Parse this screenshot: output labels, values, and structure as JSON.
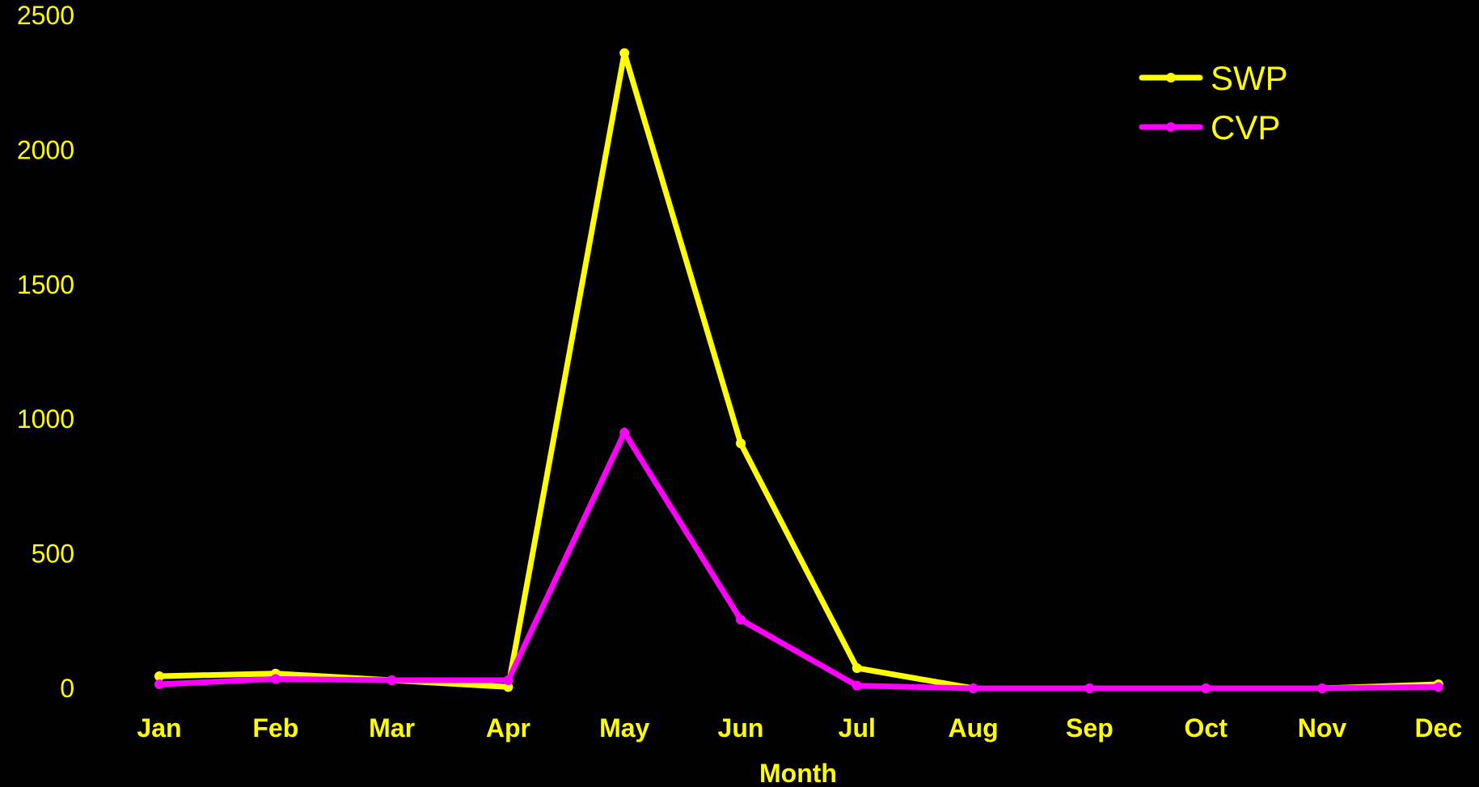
{
  "chart_data": {
    "type": "line",
    "categories": [
      "Jan",
      "Feb",
      "Mar",
      "Apr",
      "May",
      "Jun",
      "Jul",
      "Aug",
      "Sep",
      "Oct",
      "Nov",
      "Dec"
    ],
    "yticks": [
      "0",
      "500",
      "1000",
      "1500",
      "2000",
      "2500"
    ],
    "ylim": [
      0,
      2500
    ],
    "xlabel": "Month",
    "ylabel": "",
    "grid": false,
    "legend_position": "top-right",
    "text_color": "#FFFF00",
    "background": "#000000",
    "series": [
      {
        "name": "SWP",
        "color": "#FFFF00",
        "values": [
          45,
          55,
          30,
          5,
          2360,
          910,
          75,
          0,
          0,
          0,
          0,
          15
        ]
      },
      {
        "name": "CVP",
        "color": "#FF00FF",
        "values": [
          15,
          35,
          30,
          30,
          950,
          255,
          10,
          0,
          0,
          0,
          0,
          5
        ]
      }
    ]
  }
}
